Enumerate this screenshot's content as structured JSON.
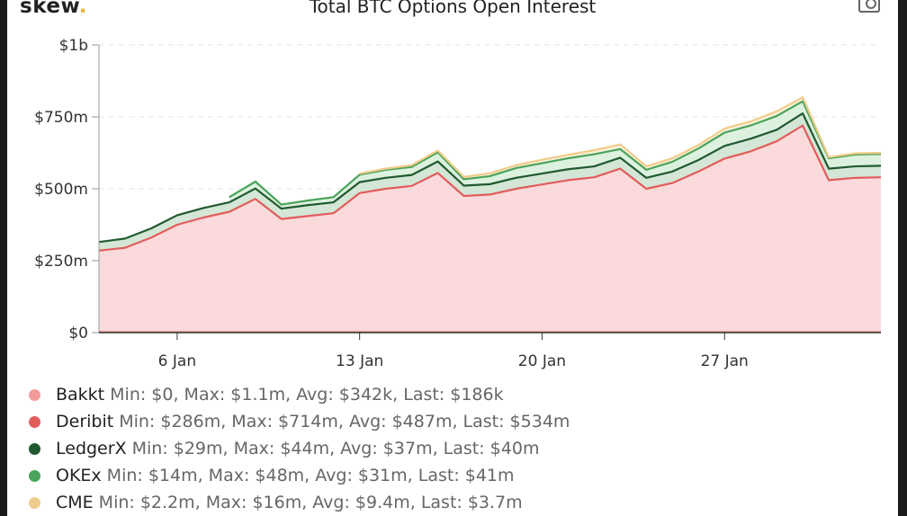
{
  "header": {
    "logo_text": "skew",
    "logo_dot": ".",
    "title": "Total BTC Options Open Interest",
    "screenshot_icon": "camera-icon"
  },
  "chart_data": {
    "type": "area",
    "stacked": true,
    "title": "Total BTC Options Open Interest",
    "xlabel": "",
    "ylabel": "",
    "ylim": [
      0,
      1000
    ],
    "y_unit": "million USD",
    "x_start": "Jan 2",
    "x_end": "Feb 1",
    "yticks": [
      {
        "value": 0,
        "label": "$0"
      },
      {
        "value": 250,
        "label": "$250m"
      },
      {
        "value": 500,
        "label": "$500m"
      },
      {
        "value": 750,
        "label": "$750m"
      },
      {
        "value": 1000,
        "label": "$1b"
      }
    ],
    "xticks": [
      {
        "value": 6,
        "label": "6 Jan"
      },
      {
        "value": 13,
        "label": "13 Jan"
      },
      {
        "value": 20,
        "label": "20 Jan"
      },
      {
        "value": 27,
        "label": "27 Jan"
      }
    ],
    "x": [
      3,
      4,
      5,
      6,
      7,
      8,
      9,
      10,
      11,
      12,
      13,
      14,
      15,
      16,
      17,
      18,
      19,
      20,
      21,
      22,
      23,
      24,
      25,
      26,
      27,
      28,
      29,
      30,
      31,
      32,
      33
    ],
    "series": [
      {
        "name": "Deribit",
        "color": "#e25c5c",
        "fill": "#f9d6d6",
        "values": [
          285,
          295,
          330,
          375,
          400,
          420,
          465,
          395,
          405,
          415,
          485,
          500,
          510,
          555,
          475,
          480,
          500,
          515,
          530,
          540,
          570,
          500,
          520,
          560,
          605,
          630,
          665,
          720,
          530,
          538,
          540
        ]
      },
      {
        "name": "LedgerX",
        "color": "#1f5a2e",
        "fill": "#cfe3d2",
        "values": [
          30,
          32,
          32,
          33,
          33,
          33,
          36,
          36,
          38,
          38,
          38,
          38,
          38,
          40,
          36,
          36,
          38,
          38,
          38,
          38,
          38,
          38,
          40,
          40,
          44,
          44,
          40,
          42,
          40,
          40,
          40
        ]
      },
      {
        "name": "OKEx",
        "color": "#4aa35a",
        "fill": "#d9efdb",
        "values": [
          null,
          null,
          null,
          null,
          null,
          18,
          24,
          14,
          16,
          18,
          26,
          28,
          28,
          32,
          22,
          28,
          34,
          36,
          38,
          42,
          30,
          28,
          34,
          40,
          46,
          46,
          48,
          42,
          36,
          41,
          41
        ]
      },
      {
        "name": "CME",
        "color": "#f0cc8a",
        "fill": "#fbefd9",
        "values": [
          null,
          null,
          null,
          null,
          null,
          null,
          null,
          null,
          null,
          null,
          4,
          4,
          6,
          6,
          8,
          10,
          10,
          12,
          12,
          14,
          16,
          12,
          12,
          12,
          14,
          14,
          16,
          14,
          4,
          4,
          4
        ]
      },
      {
        "name": "Bakkt",
        "color": "#f29a9a",
        "fill": "#fce2e2",
        "values": [
          0,
          0,
          0,
          0,
          0,
          0,
          0,
          0,
          0,
          0,
          0,
          0,
          0,
          0,
          0,
          0,
          0,
          0,
          0,
          0,
          0,
          0,
          0,
          0,
          0,
          0,
          0,
          0,
          0,
          0,
          0
        ]
      }
    ],
    "grid": true,
    "legend_position": "bottom"
  },
  "legend": [
    {
      "name": "Bakkt",
      "color": "#f29a9a",
      "stats": "Min: $0, Max: $1.1m, Avg: $342k, Last: $186k"
    },
    {
      "name": "Deribit",
      "color": "#e25c5c",
      "stats": "Min: $286m, Max: $714m, Avg: $487m, Last: $534m"
    },
    {
      "name": "LedgerX",
      "color": "#1f5a2e",
      "stats": "Min: $29m, Max: $44m, Avg: $37m, Last: $40m"
    },
    {
      "name": "OKEx",
      "color": "#4aa35a",
      "stats": "Min: $14m, Max: $48m, Avg: $31m, Last: $41m"
    },
    {
      "name": "CME",
      "color": "#f0cc8a",
      "stats": "Min: $2.2m, Max: $16m, Avg: $9.4m, Last: $3.7m"
    }
  ]
}
